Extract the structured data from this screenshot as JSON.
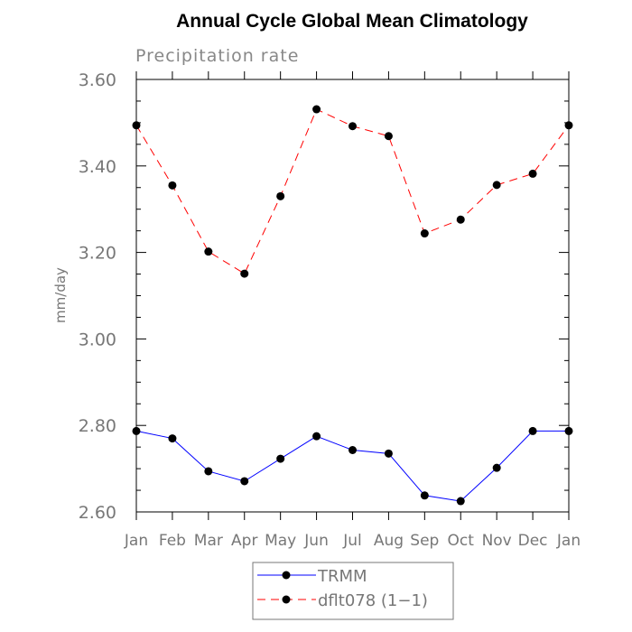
{
  "chart_data": {
    "type": "line",
    "title": "Annual Cycle Global Mean Climatology",
    "subtitle": "Precipitation rate",
    "xlabel": "",
    "ylabel": "mm/day",
    "categories": [
      "Jan",
      "Feb",
      "Mar",
      "Apr",
      "May",
      "Jun",
      "Jul",
      "Aug",
      "Sep",
      "Oct",
      "Nov",
      "Dec",
      "Jan"
    ],
    "ylim": [
      2.6,
      3.6
    ],
    "yticks": [
      "2.60",
      "2.80",
      "3.00",
      "3.20",
      "3.40",
      "3.60"
    ],
    "grid": false,
    "legend_position": "bottom-center",
    "series": [
      {
        "name": "TRMM",
        "color": "#0000ff",
        "dash": "solid",
        "values": [
          2.787,
          2.77,
          2.694,
          2.671,
          2.723,
          2.775,
          2.743,
          2.735,
          2.638,
          2.625,
          2.702,
          2.787,
          2.787
        ]
      },
      {
        "name": "dflt078 (1−1)",
        "color": "#ff0000",
        "dash": "dashed",
        "values": [
          3.494,
          3.355,
          3.202,
          3.151,
          3.33,
          3.531,
          3.492,
          3.469,
          3.244,
          3.276,
          3.356,
          3.382,
          3.494
        ]
      }
    ]
  }
}
